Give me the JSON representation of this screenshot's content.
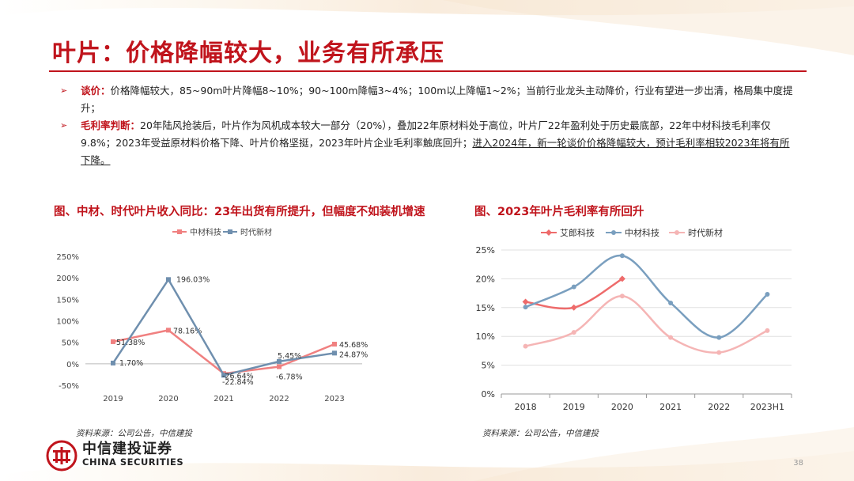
{
  "title": "叶片：价格降幅较大，业务有所承压",
  "bullets": [
    {
      "lead": "谈价：",
      "text": "价格降幅较大，85~90m叶片降幅8~10%；90~100m降幅3~4%；100m以上降幅1~2%；当前行业龙头主动降价，行业有望进一步出清，格局集中度提升；",
      "underlined": ""
    },
    {
      "lead": "毛利率判断：",
      "text": "20年陆风抢装后，叶片作为风机成本较大一部分（20%），叠加22年原材料处于高位，叶片厂22年盈利处于历史最底部，22年中材科技毛利率仅9.8%；2023年受益原材料价格下降、叶片价格坚挺，2023年叶片企业毛利率触底回升；",
      "underlined": "进入2024年，新一轮谈价价格降幅较大，预计毛利率相较2023年将有所下降。"
    }
  ],
  "chart_left_title": "图、中材、时代叶片收入同比：23年出货有所提升，但幅度不如装机增速",
  "chart_right_title": "图、2023年叶片毛利率有所回升",
  "source_left": "资料来源：公司公告，中信建投",
  "source_right": "资料来源：公司公告，中信建投",
  "logo": {
    "cn": "中信建投证券",
    "en": "CHINA SECURITIES"
  },
  "page_number": "38",
  "chart_data": [
    {
      "type": "line",
      "title": "",
      "categories": [
        "2019",
        "2020",
        "2021",
        "2022",
        "2023"
      ],
      "y_ticks": [
        "-50%",
        "0%",
        "50%",
        "100%",
        "150%",
        "200%",
        "250%"
      ],
      "ylim": [
        -50,
        250
      ],
      "legend": "top-center",
      "grid": false,
      "series": [
        {
          "name": "中材科技",
          "color": "#f08080",
          "marker": "square",
          "values": [
            51.38,
            78.16,
            -22.84,
            -6.78,
            45.68
          ],
          "labels": [
            "51.38%",
            "78.16%",
            "-22.84%",
            "-6.78%",
            "45.68%"
          ]
        },
        {
          "name": "时代新材",
          "color": "#6f8fae",
          "marker": "square",
          "values": [
            1.7,
            196.03,
            -26.64,
            5.45,
            24.87
          ],
          "labels": [
            "1.70%",
            "196.03%",
            "-26.64%",
            "5.45%",
            "24.87%"
          ]
        }
      ]
    },
    {
      "type": "line",
      "title": "",
      "categories": [
        "2018",
        "2019",
        "2020",
        "2021",
        "2022",
        "2023H1"
      ],
      "y_ticks": [
        "0%",
        "5%",
        "10%",
        "15%",
        "20%",
        "25%"
      ],
      "ylim": [
        0,
        25
      ],
      "legend": "top-center",
      "grid": true,
      "series": [
        {
          "name": "艾郎科技",
          "color": "#ee6b6b",
          "marker": "diamond",
          "values": [
            16.0,
            15.0,
            20.0,
            null,
            null,
            null
          ]
        },
        {
          "name": "中材科技",
          "color": "#7a9fbf",
          "marker": "circle",
          "values": [
            15.1,
            18.6,
            24.0,
            15.8,
            9.8,
            17.3
          ]
        },
        {
          "name": "时代新材",
          "color": "#f5b5b5",
          "marker": "circle",
          "values": [
            8.3,
            10.7,
            17.0,
            9.8,
            7.2,
            11.0
          ]
        }
      ]
    }
  ]
}
